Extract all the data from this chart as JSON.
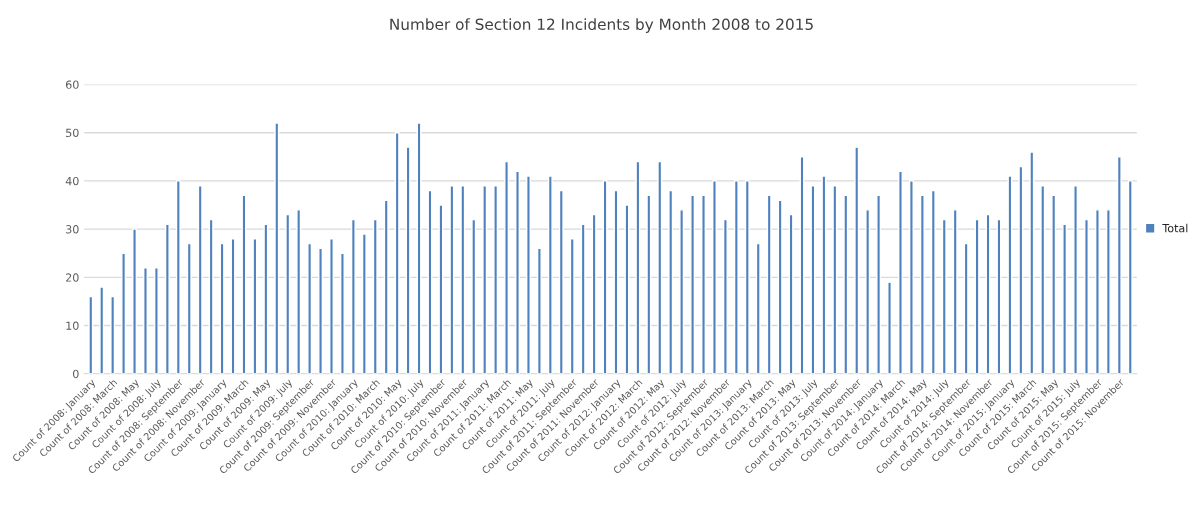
{
  "chart_data": {
    "type": "bar",
    "title": "Number of Section 12 Incidents by Month 2008 to 2015",
    "categories": [
      "Count of 2008: January",
      null,
      "Count of 2008: March",
      null,
      "Count of 2008: May",
      null,
      "Count of 2008: July",
      null,
      "Count of 2008: September",
      null,
      "Count of 2008: November",
      null,
      "Count of 2009: January",
      null,
      "Count of 2009: March",
      null,
      "Count of 2009: May",
      null,
      "Count of 2009: July",
      null,
      "Count of 2009: September",
      null,
      "Count of 2009: November",
      null,
      "Count of 2010: January",
      null,
      "Count of 2010: March",
      null,
      "Count of 2010: May",
      null,
      "Count of 2010: July",
      null,
      "Count of 2010: September",
      null,
      "Count of 2010: November",
      null,
      "Count of 2011: January",
      null,
      "Count of 2011: March",
      null,
      "Count of 2011: May",
      null,
      "Count of 2011: July",
      null,
      "Count of 2011: September",
      null,
      "Count of 2011: November",
      null,
      "Count of 2012: January",
      null,
      "Count of 2012: March",
      null,
      "Count of 2012: May",
      null,
      "Count of 2012: July",
      null,
      "Count of 2012: September",
      null,
      "Count of 2012: November",
      null,
      "Count of 2013: January",
      null,
      "Count of 2013: March",
      null,
      "Count of 2013: May",
      null,
      "Count of 2013: July",
      null,
      "Count of 2013: September",
      null,
      "Count of 2013: November",
      null,
      "Count of 2014: January",
      null,
      "Count of 2014: March",
      null,
      "Count of 2014: May",
      null,
      "Count of 2014: July",
      null,
      "Count of 2014: September",
      null,
      "Count of 2014: November",
      null,
      "Count of 2015: January",
      null,
      "Count of 2015: March",
      null,
      "Count of 2015: May",
      null,
      "Count of 2015: July",
      null,
      "Count of 2015: September",
      null,
      "Count of 2015: November",
      null
    ],
    "series": [
      {
        "name": "Total",
        "color": "#4f81bd",
        "values": [
          16,
          18,
          16,
          25,
          30,
          22,
          22,
          31,
          40,
          27,
          39,
          32,
          27,
          28,
          37,
          28,
          31,
          52,
          33,
          34,
          27,
          26,
          28,
          25,
          32,
          29,
          32,
          36,
          50,
          47,
          52,
          38,
          35,
          39,
          39,
          32,
          39,
          39,
          44,
          42,
          41,
          26,
          41,
          38,
          28,
          31,
          33,
          40,
          38,
          35,
          44,
          37,
          44,
          38,
          34,
          37,
          37,
          40,
          32,
          40,
          40,
          27,
          37,
          36,
          33,
          45,
          39,
          41,
          39,
          37,
          47,
          34,
          37,
          19,
          42,
          40,
          37,
          38,
          32,
          34,
          27,
          32,
          33,
          32,
          41,
          43,
          46,
          39,
          37,
          31,
          39,
          32,
          34,
          34,
          45,
          40
        ]
      }
    ],
    "ylim": [
      0,
      60
    ],
    "yticks": [
      0,
      10,
      20,
      30,
      40,
      50,
      60
    ],
    "grid": "y",
    "legend": "right"
  }
}
